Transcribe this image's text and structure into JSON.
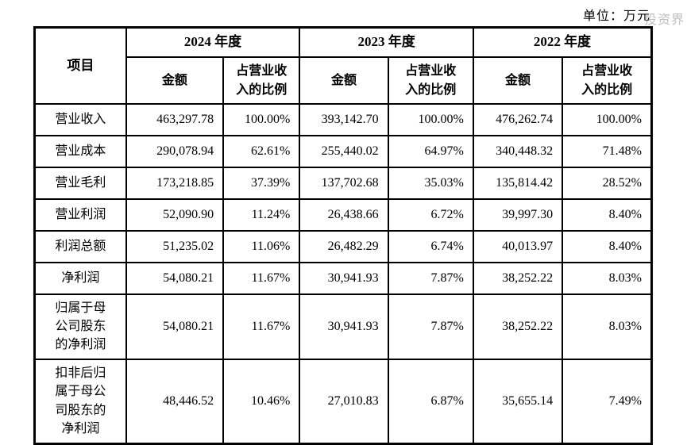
{
  "unit_label": "单位：万元",
  "watermark": "投资界",
  "table": {
    "item_header": "项目",
    "year_groups": [
      {
        "year": "2024 年度",
        "amount_header": "金额",
        "ratio_header": "占营业收入的比例"
      },
      {
        "year": "2023 年度",
        "amount_header": "金额",
        "ratio_header": "占营业收入的比例"
      },
      {
        "year": "2022 年度",
        "amount_header": "金额",
        "ratio_header": "占营业收入的比例"
      }
    ],
    "rows": [
      {
        "label": "营业收入",
        "values": [
          "463,297.78",
          "100.00%",
          "393,142.70",
          "100.00%",
          "476,262.74",
          "100.00%"
        ]
      },
      {
        "label": "营业成本",
        "values": [
          "290,078.94",
          "62.61%",
          "255,440.02",
          "64.97%",
          "340,448.32",
          "71.48%"
        ]
      },
      {
        "label": "营业毛利",
        "values": [
          "173,218.85",
          "37.39%",
          "137,702.68",
          "35.03%",
          "135,814.42",
          "28.52%"
        ]
      },
      {
        "label": "营业利润",
        "values": [
          "52,090.90",
          "11.24%",
          "26,438.66",
          "6.72%",
          "39,997.30",
          "8.40%"
        ]
      },
      {
        "label": "利润总额",
        "values": [
          "51,235.02",
          "11.06%",
          "26,482.29",
          "6.74%",
          "40,013.97",
          "8.40%"
        ]
      },
      {
        "label": "净利润",
        "values": [
          "54,080.21",
          "11.67%",
          "30,941.93",
          "7.87%",
          "38,252.22",
          "8.03%"
        ]
      },
      {
        "label": "归属于母公司股东的净利润",
        "values": [
          "54,080.21",
          "11.67%",
          "30,941.93",
          "7.87%",
          "38,252.22",
          "8.03%"
        ]
      },
      {
        "label": "扣非后归属于母公司股东的净利润",
        "values": [
          "48,446.52",
          "10.46%",
          "27,010.83",
          "6.87%",
          "35,655.14",
          "7.49%"
        ]
      }
    ]
  }
}
